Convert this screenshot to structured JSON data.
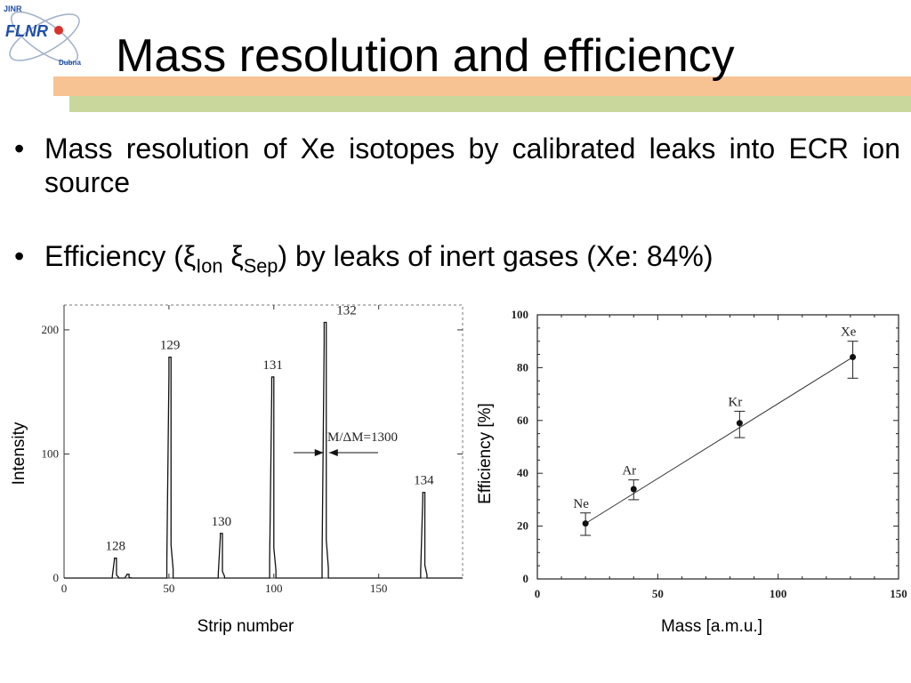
{
  "header": {
    "title": "Mass resolution and efficiency",
    "logo": {
      "top_text": "JINR",
      "main_text": "FLNR",
      "bottom_text": "Dubna",
      "colors": {
        "blue": "#1f4fa8",
        "red": "#d8322b",
        "orbit": "#9fb0c8"
      }
    }
  },
  "bullets": [
    {
      "text": "Mass resolution of Xe isotopes by calibrated leaks into ECR ion source"
    },
    {
      "prefix": "Efficiency (ξ",
      "sub1": "Ion",
      "mid": " ξ",
      "sub2": "Sep",
      "suffix": ") by leaks of inert gases (Xe: 84%)"
    }
  ],
  "theme": {
    "band_orange": "#f7c393",
    "band_green": "#c9d79d"
  },
  "chart_data": [
    {
      "type": "line",
      "xlabel": "Strip number",
      "ylabel": "Intensity",
      "xlim": [
        0,
        190
      ],
      "ylim": [
        0,
        220
      ],
      "xticks": [
        0,
        50,
        100,
        150
      ],
      "yticks": [
        0,
        100,
        200
      ],
      "peaks": [
        {
          "label": "128",
          "x": 24.5,
          "y": 16
        },
        {
          "label": "129",
          "x": 50.5,
          "y": 178
        },
        {
          "label": "130",
          "x": 75,
          "y": 36
        },
        {
          "label": "131",
          "x": 99.5,
          "y": 162
        },
        {
          "label": "132",
          "x": 124.5,
          "y": 206
        },
        {
          "label": "134",
          "x": 171.5,
          "y": 69
        }
      ],
      "minor_peaks": [
        {
          "x": 30.5,
          "y": 3
        }
      ],
      "annotation": {
        "text": "M/ΔM=1300",
        "x": 125,
        "y": 101
      }
    },
    {
      "type": "scatter",
      "xlabel": "Mass [a.m.u.]",
      "ylabel": "Efficiency [%]",
      "xlim": [
        0,
        150
      ],
      "ylim": [
        0,
        100
      ],
      "xticks": [
        0,
        50,
        100,
        150
      ],
      "yticks": [
        0,
        20,
        40,
        60,
        80,
        100
      ],
      "points": [
        {
          "label": "Ne",
          "x": 20,
          "y": 21,
          "err_low": 16.5,
          "err_high": 25
        },
        {
          "label": "Ar",
          "x": 40,
          "y": 34,
          "err_low": 30,
          "err_high": 37.5
        },
        {
          "label": "Kr",
          "x": 84,
          "y": 59,
          "err_low": 53.5,
          "err_high": 63.5
        },
        {
          "label": "Xe",
          "x": 131,
          "y": 84,
          "err_low": 76,
          "err_high": 90
        }
      ],
      "fit_line": {
        "x": [
          20,
          131
        ],
        "y": [
          21,
          84
        ]
      },
      "grid": false
    }
  ]
}
